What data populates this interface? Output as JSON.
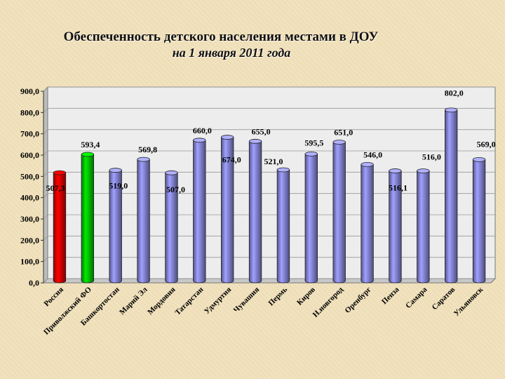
{
  "title_line1": "Обеспеченность детского  населения местами в ДОУ",
  "title_line2": "на 1 января 2011 года",
  "chart_data": {
    "type": "bar",
    "title": "Обеспеченность детского населения местами в ДОУ на 1 января 2011 года",
    "categories": [
      "Россия",
      "Приволжский ФО",
      "Башкортостан",
      "Марий Эл",
      "Мордовия",
      "Татарстан",
      "Удмуртия",
      "Чувашия",
      "Пермь",
      "Киров",
      "Н.новгород",
      "Оренбург",
      "Пенза",
      "Самара",
      "Саратов",
      "Ульяновск"
    ],
    "values": [
      507.3,
      593.4,
      519.0,
      569.8,
      507.0,
      660.0,
      674.0,
      655.0,
      521.0,
      595.5,
      651.0,
      546.0,
      516.1,
      516.0,
      802.0,
      569.0
    ],
    "value_labels": [
      "507,3",
      "593,4",
      "519,0",
      "569,8",
      "507,0",
      "660,0",
      "674,0",
      "655,0",
      "521,0",
      "595,5",
      "651,0",
      "546,0",
      "516,1",
      "516,0",
      "802,0",
      "569,0"
    ],
    "colors": [
      "#ff0000",
      "#00e000",
      "#9999ff",
      "#9999ff",
      "#9999ff",
      "#9999ff",
      "#9999ff",
      "#9999ff",
      "#9999ff",
      "#9999ff",
      "#9999ff",
      "#9999ff",
      "#9999ff",
      "#9999ff",
      "#9999ff",
      "#9999ff"
    ],
    "ylim": [
      0,
      900
    ],
    "yticks": [
      "0,0",
      "100,0",
      "200,0",
      "300,0",
      "400,0",
      "500,0",
      "600,0",
      "700,0",
      "800,0",
      "900,0"
    ],
    "grid": true,
    "xlabel": "",
    "ylabel": ""
  }
}
